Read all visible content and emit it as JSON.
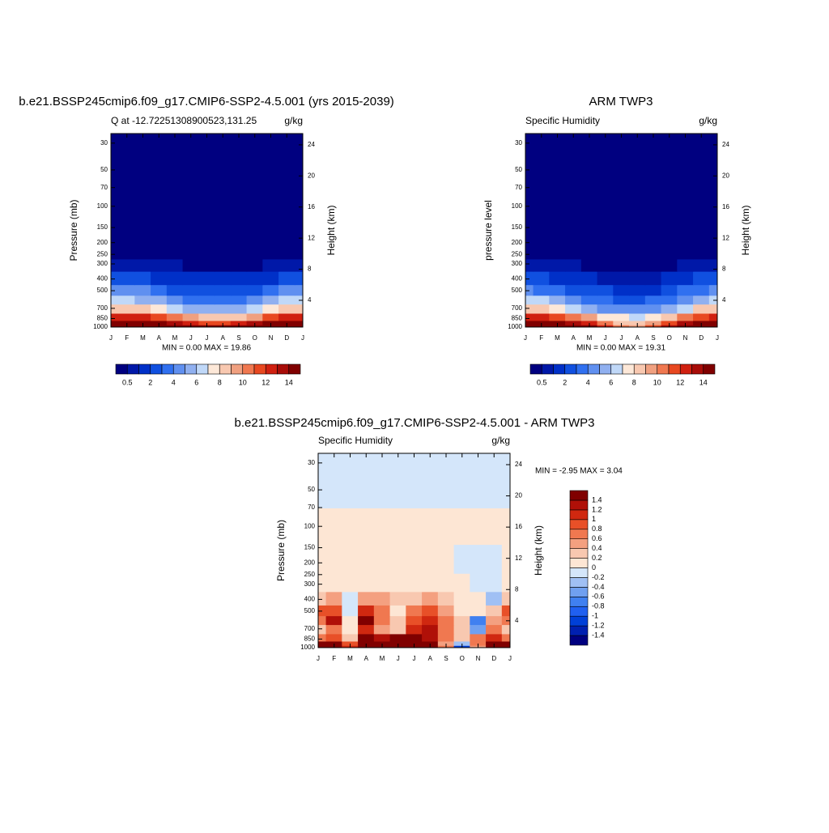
{
  "chart_data": [
    {
      "type": "contour",
      "title": "b.e21.BSSP245cmip6.f09_g17.CMIP6-SSP2-4.5.001 (yrs 2015-2039)",
      "subtitle_left": "Q at -12.72251308900523,131.25",
      "subtitle_right": "g/kg",
      "ylabel": "Pressure (mb)",
      "y2label": "Height (km)",
      "stats": "MIN =   0.00 MAX =  19.86",
      "xticks": [
        "J",
        "F",
        "M",
        "A",
        "M",
        "J",
        "J",
        "A",
        "S",
        "O",
        "N",
        "D",
        "J"
      ],
      "ylim": [
        1000,
        25
      ],
      "log": true,
      "yticks": [
        30,
        50,
        70,
        100,
        150,
        200,
        250,
        300,
        400,
        500,
        700,
        850,
        1000
      ],
      "y2lim": [
        0.56,
        25.45
      ],
      "y2ticks": [
        4,
        8,
        12,
        16,
        20,
        24
      ],
      "levels": [
        1000,
        925,
        850,
        700,
        600,
        500,
        400,
        300,
        250,
        200,
        30
      ],
      "field": [
        [
          19.0,
          19.2,
          18.8,
          18.0,
          17.0,
          16.2,
          15.5,
          15.0,
          15.5,
          16.5,
          17.8,
          18.8,
          19.0
        ],
        [
          15.5,
          15.6,
          15.2,
          14.2,
          13.2,
          12.5,
          11.8,
          11.5,
          12.0,
          13.0,
          14.2,
          15.2,
          15.5
        ],
        [
          12.5,
          12.6,
          12.2,
          11.0,
          10.0,
          9.2,
          8.6,
          8.3,
          8.8,
          9.8,
          11.2,
          12.2,
          12.5
        ],
        [
          8.5,
          8.6,
          8.2,
          7.2,
          6.4,
          5.8,
          5.3,
          5.0,
          5.3,
          6.2,
          7.4,
          8.3,
          8.5
        ],
        [
          6.2,
          6.3,
          5.9,
          5.0,
          4.4,
          3.9,
          3.5,
          3.3,
          3.5,
          4.2,
          5.2,
          6.0,
          6.2
        ],
        [
          4.2,
          4.3,
          4.0,
          3.3,
          2.8,
          2.5,
          2.2,
          2.0,
          2.2,
          2.7,
          3.4,
          4.0,
          4.2
        ],
        [
          2.3,
          2.4,
          2.2,
          1.8,
          1.5,
          1.3,
          1.2,
          1.1,
          1.1,
          1.4,
          1.8,
          2.2,
          2.3
        ],
        [
          0.9,
          0.9,
          0.8,
          0.6,
          0.5,
          0.45,
          0.4,
          0.4,
          0.35,
          0.45,
          0.6,
          0.8,
          0.9
        ],
        [
          0.45,
          0.45,
          0.4,
          0.3,
          0.25,
          0.2,
          0.2,
          0.2,
          0.18,
          0.22,
          0.3,
          0.4,
          0.45
        ],
        [
          0.1,
          0.1,
          0.1,
          0.1,
          0.1,
          0.1,
          0.1,
          0.1,
          0.1,
          0.1,
          0.1,
          0.1,
          0.1
        ],
        [
          0,
          0,
          0,
          0,
          0,
          0,
          0,
          0,
          0,
          0,
          0,
          0,
          0
        ]
      ],
      "colorbar": {
        "levels": [
          0.5,
          1,
          2,
          3,
          4,
          5,
          6,
          7,
          8,
          9,
          10,
          11,
          12,
          13,
          14
        ],
        "colors": [
          "#000080",
          "#0018a8",
          "#0030c8",
          "#1050e0",
          "#3070f0",
          "#6090f0",
          "#90b0f0",
          "#c0d8f8",
          "#fde8d8",
          "#f8c8b0",
          "#f0a080",
          "#f07850",
          "#e84820",
          "#d02010",
          "#a80c08",
          "#800000"
        ],
        "ticks": [
          0.5,
          2,
          4,
          6,
          8,
          10,
          12,
          14
        ]
      }
    },
    {
      "type": "contour",
      "title": "ARM TWP3",
      "subtitle_left": "Specific Humidity",
      "subtitle_right": "g/kg",
      "ylabel": "pressure level",
      "y2label": "Height (km)",
      "stats": "MIN =   0.00 MAX =  19.31",
      "xticks": [
        "J",
        "F",
        "M",
        "A",
        "M",
        "J",
        "J",
        "A",
        "S",
        "O",
        "N",
        "D",
        "J"
      ],
      "ylim": [
        1000,
        25
      ],
      "log": true,
      "yticks": [
        30,
        50,
        70,
        100,
        150,
        200,
        250,
        300,
        400,
        500,
        700,
        850,
        1000
      ],
      "y2lim": [
        0.56,
        25.45
      ],
      "y2ticks": [
        4,
        8,
        12,
        16,
        20,
        24
      ],
      "levels": [
        1000,
        925,
        850,
        700,
        600,
        500,
        400,
        300,
        250,
        200,
        30
      ],
      "field": [
        [
          19.3,
          19.2,
          18.6,
          17.2,
          15.4,
          12.8,
          10.5,
          9.8,
          11.0,
          13.5,
          16.2,
          18.6,
          19.3
        ],
        [
          15.8,
          15.7,
          15.0,
          13.6,
          12.0,
          10.0,
          8.8,
          8.4,
          9.2,
          11.0,
          13.4,
          15.2,
          15.8
        ],
        [
          12.3,
          12.2,
          11.6,
          10.2,
          9.0,
          7.8,
          7.0,
          6.8,
          7.2,
          8.4,
          10.2,
          11.8,
          12.3
        ],
        [
          8.4,
          8.3,
          7.8,
          6.6,
          5.8,
          4.9,
          4.4,
          4.2,
          4.5,
          5.4,
          6.8,
          8.0,
          8.4
        ],
        [
          6.1,
          6.0,
          5.5,
          4.4,
          3.8,
          3.3,
          2.9,
          2.7,
          3.0,
          3.6,
          4.8,
          5.8,
          6.1
        ],
        [
          4.0,
          3.9,
          3.5,
          2.7,
          2.3,
          2.0,
          1.7,
          1.5,
          1.7,
          2.2,
          3.1,
          3.8,
          4.0
        ],
        [
          2.1,
          2.0,
          1.8,
          1.3,
          1.1,
          0.9,
          0.8,
          0.7,
          0.8,
          1.1,
          1.6,
          2.0,
          2.1
        ],
        [
          0.8,
          0.8,
          0.7,
          0.5,
          0.4,
          0.35,
          0.3,
          0.3,
          0.3,
          0.4,
          0.6,
          0.8,
          0.8
        ],
        [
          0.45,
          0.4,
          0.35,
          0.25,
          0.2,
          0.2,
          0.2,
          0.2,
          0.2,
          0.2,
          0.3,
          0.4,
          0.45
        ],
        [
          0.1,
          0.1,
          0.1,
          0.1,
          0.1,
          0.1,
          0.1,
          0.1,
          0.1,
          0.1,
          0.1,
          0.1,
          0.1
        ],
        [
          0,
          0,
          0,
          0,
          0,
          0,
          0,
          0,
          0,
          0,
          0,
          0,
          0
        ]
      ],
      "colorbar": {
        "levels": [
          0.5,
          1,
          2,
          3,
          4,
          5,
          6,
          7,
          8,
          9,
          10,
          11,
          12,
          13,
          14
        ],
        "colors": [
          "#000080",
          "#0018a8",
          "#0030c8",
          "#1050e0",
          "#3070f0",
          "#6090f0",
          "#90b0f0",
          "#c0d8f8",
          "#fde8d8",
          "#f8c8b0",
          "#f0a080",
          "#f07850",
          "#e84820",
          "#d02010",
          "#a80c08",
          "#800000"
        ],
        "ticks": [
          0.5,
          2,
          4,
          6,
          8,
          10,
          12,
          14
        ]
      }
    },
    {
      "type": "contour",
      "title": "b.e21.BSSP245cmip6.f09_g17.CMIP6-SSP2-4.5.001 - ARM TWP3",
      "subtitle_left": "Specific Humidity",
      "subtitle_right": "g/kg",
      "ylabel": "Pressure (mb)",
      "y2label": "Height (km)",
      "stats": "MIN =  -2.95 MAX =   3.04",
      "xticks": [
        "J",
        "F",
        "M",
        "A",
        "M",
        "J",
        "J",
        "A",
        "S",
        "O",
        "N",
        "D",
        "J"
      ],
      "ylim": [
        1000,
        25
      ],
      "log": true,
      "yticks": [
        30,
        50,
        70,
        100,
        150,
        200,
        250,
        300,
        400,
        500,
        700,
        850,
        1000
      ],
      "y2lim": [
        0.56,
        25.45
      ],
      "y2ticks": [
        4,
        8,
        12,
        16,
        20,
        24
      ],
      "levels": [
        1000,
        925,
        850,
        700,
        600,
        500,
        400,
        300,
        200,
        100,
        50,
        30
      ],
      "field": [
        [
          1.6,
          1.6,
          1.0,
          1.8,
          1.8,
          2.0,
          2.0,
          1.6,
          0.6,
          -1.2,
          0.4,
          1.6,
          1.6
        ],
        [
          1.6,
          1.5,
          0.8,
          1.6,
          1.6,
          1.8,
          1.8,
          1.5,
          0.5,
          -0.3,
          0.6,
          1.5,
          1.6
        ],
        [
          0.6,
          0.8,
          0.3,
          1.6,
          1.2,
          1.4,
          1.6,
          1.2,
          0.6,
          0.2,
          0.6,
          1.0,
          0.6
        ],
        [
          0.3,
          0.6,
          0.1,
          1.0,
          0.4,
          0.3,
          1.0,
          1.2,
          0.6,
          0.3,
          -0.6,
          0.6,
          0.3
        ],
        [
          0.6,
          1.2,
          0.0,
          1.4,
          0.6,
          0.2,
          0.8,
          1.0,
          0.6,
          0.2,
          -0.8,
          0.4,
          0.6
        ],
        [
          0.8,
          0.9,
          -0.2,
          1.0,
          0.6,
          0.1,
          0.6,
          0.8,
          0.5,
          0.1,
          0.1,
          0.2,
          0.8
        ],
        [
          0.3,
          0.4,
          -0.2,
          0.5,
          0.4,
          0.2,
          0.3,
          0.4,
          0.3,
          0.1,
          0.1,
          -0.3,
          0.3
        ],
        [
          0.1,
          0.1,
          0.1,
          0.1,
          0.1,
          0.1,
          0.1,
          0.1,
          0.1,
          0.1,
          -0.1,
          -0.1,
          0.1
        ],
        [
          0.1,
          0.1,
          0.1,
          0.1,
          0.1,
          0.1,
          0.1,
          0.1,
          0.1,
          -0.1,
          -0.1,
          -0.1,
          0.1
        ],
        [
          0.1,
          0.1,
          0.1,
          0.1,
          0.1,
          0.1,
          0.1,
          0.1,
          0.1,
          0.1,
          0.1,
          0.1,
          0.1
        ],
        [
          -0.1,
          -0.1,
          -0.1,
          -0.1,
          -0.1,
          -0.1,
          -0.1,
          -0.1,
          -0.1,
          -0.1,
          -0.1,
          -0.1,
          -0.1
        ],
        [
          -0.1,
          -0.1,
          -0.1,
          -0.1,
          -0.1,
          -0.1,
          -0.1,
          -0.1,
          -0.1,
          -0.1,
          -0.1,
          -0.1,
          -0.1
        ]
      ],
      "colorbar": {
        "levels": [
          -1.4,
          -1.2,
          -1,
          -0.8,
          -0.6,
          -0.4,
          -0.2,
          0,
          0.2,
          0.4,
          0.6,
          0.8,
          1,
          1.2,
          1.4
        ],
        "colors": [
          "#000080",
          "#0020b0",
          "#0040d8",
          "#2060f0",
          "#4080f0",
          "#70a0f0",
          "#a0c0f4",
          "#d4e6fa",
          "#fde6d4",
          "#f8c8b0",
          "#f4a080",
          "#f07850",
          "#e85028",
          "#d02810",
          "#b01008",
          "#800000"
        ],
        "ticks": [
          1.4,
          1.2,
          1,
          0.8,
          0.6,
          0.4,
          0.2,
          0,
          -0.2,
          -0.4,
          -0.6,
          -0.8,
          -1,
          -1.2,
          -1.4
        ]
      }
    }
  ]
}
